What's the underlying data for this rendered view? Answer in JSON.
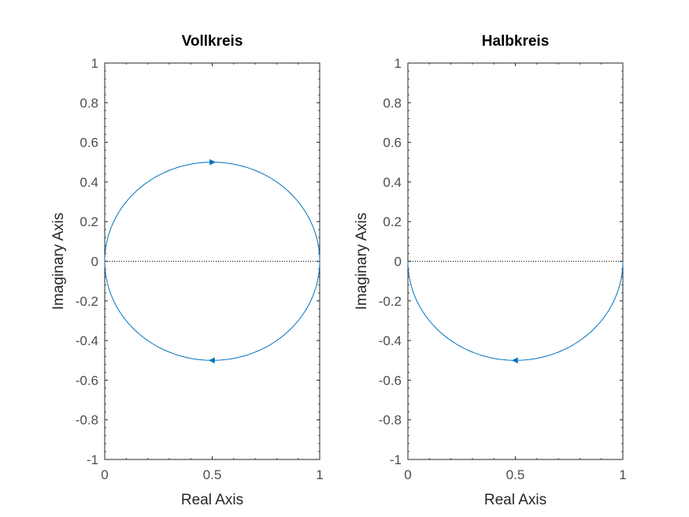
{
  "chart_data": [
    {
      "type": "line",
      "title": "Vollkreis",
      "xlabel": "Real Axis",
      "ylabel": "Imaginary Axis",
      "xlim": [
        0,
        1
      ],
      "ylim": [
        -1,
        1
      ],
      "xticks": [
        "0",
        "0.5",
        "1"
      ],
      "yticks": [
        "-1",
        "-0.8",
        "-0.6",
        "-0.4",
        "-0.2",
        "0",
        "0.2",
        "0.4",
        "0.6",
        "0.8",
        "1"
      ],
      "grid": false,
      "series": [
        {
          "curve": "circle",
          "center": [
            0.5,
            0
          ],
          "radius": 0.5,
          "theta_range_deg": [
            0,
            360
          ],
          "color": "#0072BD",
          "arrows": [
            {
              "x": 0.5,
              "y": 0.5,
              "direction": "right"
            },
            {
              "x": 0.5,
              "y": -0.5,
              "direction": "left"
            }
          ]
        }
      ],
      "reference_line": {
        "y": 0,
        "style": "dotted",
        "color": "#000000"
      }
    },
    {
      "type": "line",
      "title": "Halbkreis",
      "xlabel": "Real Axis",
      "ylabel": "Imaginary Axis",
      "xlim": [
        0,
        1
      ],
      "ylim": [
        -1,
        1
      ],
      "xticks": [
        "0",
        "0.5",
        "1"
      ],
      "yticks": [
        "-1",
        "-0.8",
        "-0.6",
        "-0.4",
        "-0.2",
        "0",
        "0.2",
        "0.4",
        "0.6",
        "0.8",
        "1"
      ],
      "grid": false,
      "series": [
        {
          "curve": "circle",
          "center": [
            0.5,
            0
          ],
          "radius": 0.5,
          "theta_range_deg": [
            180,
            360
          ],
          "color": "#0072BD",
          "arrows": [
            {
              "x": 0.5,
              "y": -0.5,
              "direction": "left"
            }
          ]
        }
      ],
      "reference_line": {
        "y": 0,
        "style": "dotted",
        "color": "#000000"
      }
    }
  ]
}
